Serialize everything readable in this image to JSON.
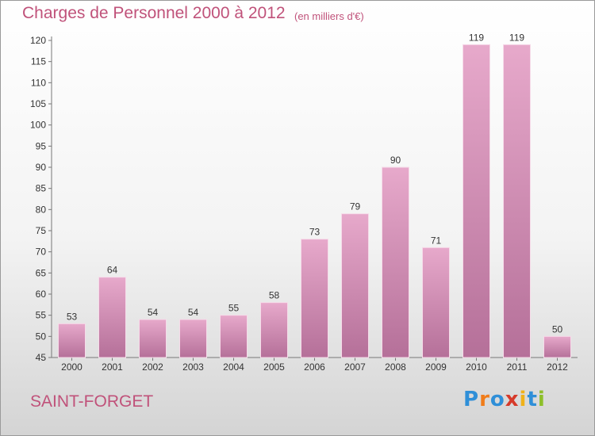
{
  "header": {
    "title": "Charges de Personnel 2000 à 2012",
    "subtitle": "(en milliers d'€)"
  },
  "footer": {
    "commune": "SAINT-FORGET",
    "logo": "Proxiti"
  },
  "colors": {
    "bar_light": "#e7a9cb",
    "bar_dark": "#b57099",
    "title": "#c0527a",
    "logo_letters": [
      "#2f8fd8",
      "#f07c1a",
      "#2f8fd8",
      "#d63a2a",
      "#f0b21a",
      "#2f8fd8",
      "#8dbf2a"
    ]
  },
  "chart_data": {
    "type": "bar",
    "categories": [
      "2000",
      "2001",
      "2002",
      "2003",
      "2004",
      "2005",
      "2006",
      "2007",
      "2008",
      "2009",
      "2010",
      "2011",
      "2012"
    ],
    "values": [
      53,
      64,
      54,
      54,
      55,
      58,
      73,
      79,
      90,
      71,
      119,
      119,
      50
    ],
    "title": "Charges de Personnel 2000 à 2012",
    "subtitle": "(en milliers d'€)",
    "xlabel": "",
    "ylabel": "",
    "ylim": [
      45,
      120
    ],
    "yticks": [
      45,
      50,
      55,
      60,
      65,
      70,
      75,
      80,
      85,
      90,
      95,
      100,
      105,
      110,
      115,
      120
    ],
    "grid": false,
    "legend": "none"
  }
}
